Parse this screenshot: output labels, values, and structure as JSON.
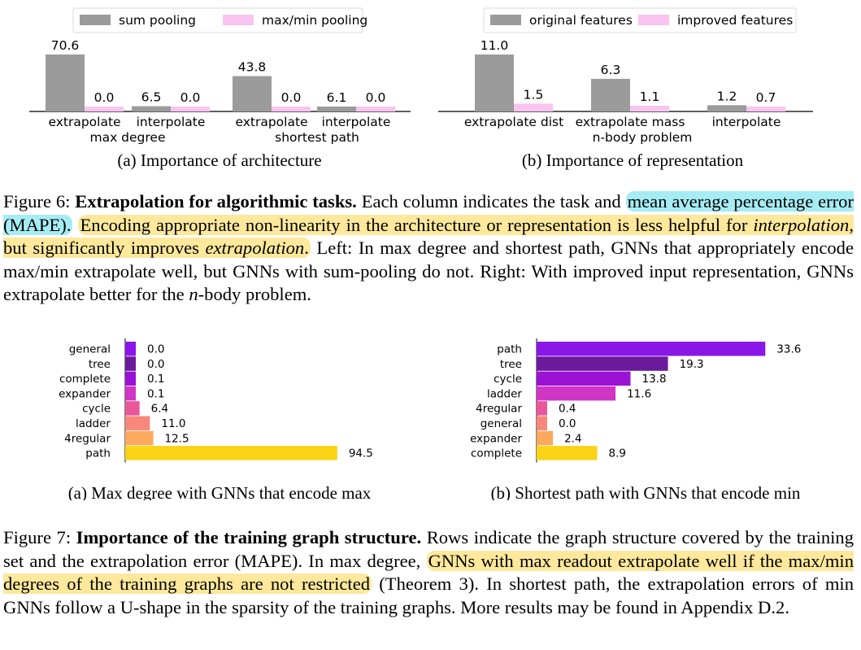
{
  "figure6": {
    "chart_data": [
      {
        "type": "bar",
        "legend": [
          "sum pooling",
          "max/min pooling"
        ],
        "legend_position": "top",
        "colors": [
          "#9b9b9b",
          "#f9c4ef"
        ],
        "groups": [
          {
            "name": "max degree",
            "categories": [
              "extrapolate",
              "interpolate"
            ]
          },
          {
            "name": "shortest path",
            "categories": [
              "extrapolate",
              "interpolate"
            ]
          }
        ],
        "series": [
          {
            "name": "sum pooling",
            "values": [
              70.6,
              6.5,
              43.8,
              6.1
            ]
          },
          {
            "name": "max/min pooling",
            "values": [
              0.0,
              0.0,
              0.0,
              0.0
            ]
          }
        ],
        "value_labels": [
          [
            "70.6",
            "6.5",
            "43.8",
            "6.1"
          ],
          [
            "0.0",
            "0.0",
            "0.0",
            "0.0"
          ]
        ],
        "caption": "(a) Importance of architecture"
      },
      {
        "type": "bar",
        "legend": [
          "original features",
          "improved features"
        ],
        "legend_position": "top",
        "colors": [
          "#9b9b9b",
          "#f9c4ef"
        ],
        "groups": [
          {
            "name": "",
            "categories": [
              "extrapolate dist"
            ]
          },
          {
            "name": "n-body problem",
            "categories": [
              "extrapolate mass"
            ]
          },
          {
            "name": "",
            "categories": [
              "interpolate"
            ]
          }
        ],
        "series": [
          {
            "name": "original features",
            "values": [
              11.0,
              6.3,
              1.2
            ]
          },
          {
            "name": "improved features",
            "values": [
              1.5,
              1.1,
              0.7
            ]
          }
        ],
        "value_labels": [
          [
            "11.0",
            "6.3",
            "1.2"
          ],
          [
            "1.5",
            "1.1",
            "0.7"
          ]
        ],
        "caption": "(b) Importance of representation"
      }
    ],
    "caption_label": "Figure 6:",
    "caption_title": "Extrapolation for algorithmic tasks.",
    "caption_t1": "Each column indicates the task and",
    "caption_hl1": "mean average percentage error (MAPE).",
    "caption_hl2a": "Encoding appropriate non-linearity in the architecture or representation is less helpful for",
    "caption_hl2b": "interpolation",
    "caption_hl2c": ", but significantly improves",
    "caption_hl2d": "extrapolation",
    "caption_hl2e": ".",
    "caption_t2": "Left: In max degree and shortest path, GNNs that appropriately encode max/min extrapolate well, but GNNs with sum-pooling do not. Right: With improved input representation, GNNs extrapolate better for the",
    "caption_n": "n",
    "caption_t3": "-body problem."
  },
  "figure7": {
    "chart_data": [
      {
        "type": "bar",
        "orientation": "horizontal",
        "categories": [
          "general",
          "tree",
          "complete",
          "expander",
          "cycle",
          "ladder",
          "4regular",
          "path"
        ],
        "values": [
          0.0,
          0.0,
          0.1,
          0.1,
          6.4,
          11.0,
          12.5,
          94.5
        ],
        "value_labels": [
          "0.0",
          "0.0",
          "0.1",
          "0.1",
          "6.4",
          "11.0",
          "12.5",
          "94.5"
        ],
        "colors": [
          "#8a16e8",
          "#6a1a9a",
          "#9a12d4",
          "#cf36c4",
          "#e8579a",
          "#f7877a",
          "#fca95e",
          "#fad414"
        ],
        "xlim": [
          0,
          100
        ],
        "caption": "(a) Max degree with GNNs that encode max"
      },
      {
        "type": "bar",
        "orientation": "horizontal",
        "categories": [
          "path",
          "tree",
          "cycle",
          "ladder",
          "4regular",
          "general",
          "expander",
          "complete"
        ],
        "values": [
          33.6,
          19.3,
          13.8,
          11.6,
          0.4,
          0.0,
          2.4,
          8.9
        ],
        "value_labels": [
          "33.6",
          "19.3",
          "13.8",
          "11.6",
          "0.4",
          "0.0",
          "2.4",
          "8.9"
        ],
        "colors": [
          "#8a16e8",
          "#6a1a9a",
          "#9a12d4",
          "#cf36c4",
          "#e8579a",
          "#f7877a",
          "#fca95e",
          "#fad414"
        ],
        "xlim": [
          0,
          35
        ],
        "caption": "(b) Shortest path with GNNs that encode min"
      }
    ],
    "caption_label": "Figure 7:",
    "caption_title": "Importance of the training graph structure.",
    "caption_t1": "Rows indicate the graph structure covered by the training set and the extrapolation error (MAPE). In max degree,",
    "caption_hl": "GNNs with max readout extrapolate well if the max/min degrees of the training graphs are not restricted",
    "caption_t2": "(Theorem 3). In shortest path, the extrapolation errors of min GNNs follow a U-shape in the sparsity of the training graphs. More results may be found in Appendix D.2."
  }
}
